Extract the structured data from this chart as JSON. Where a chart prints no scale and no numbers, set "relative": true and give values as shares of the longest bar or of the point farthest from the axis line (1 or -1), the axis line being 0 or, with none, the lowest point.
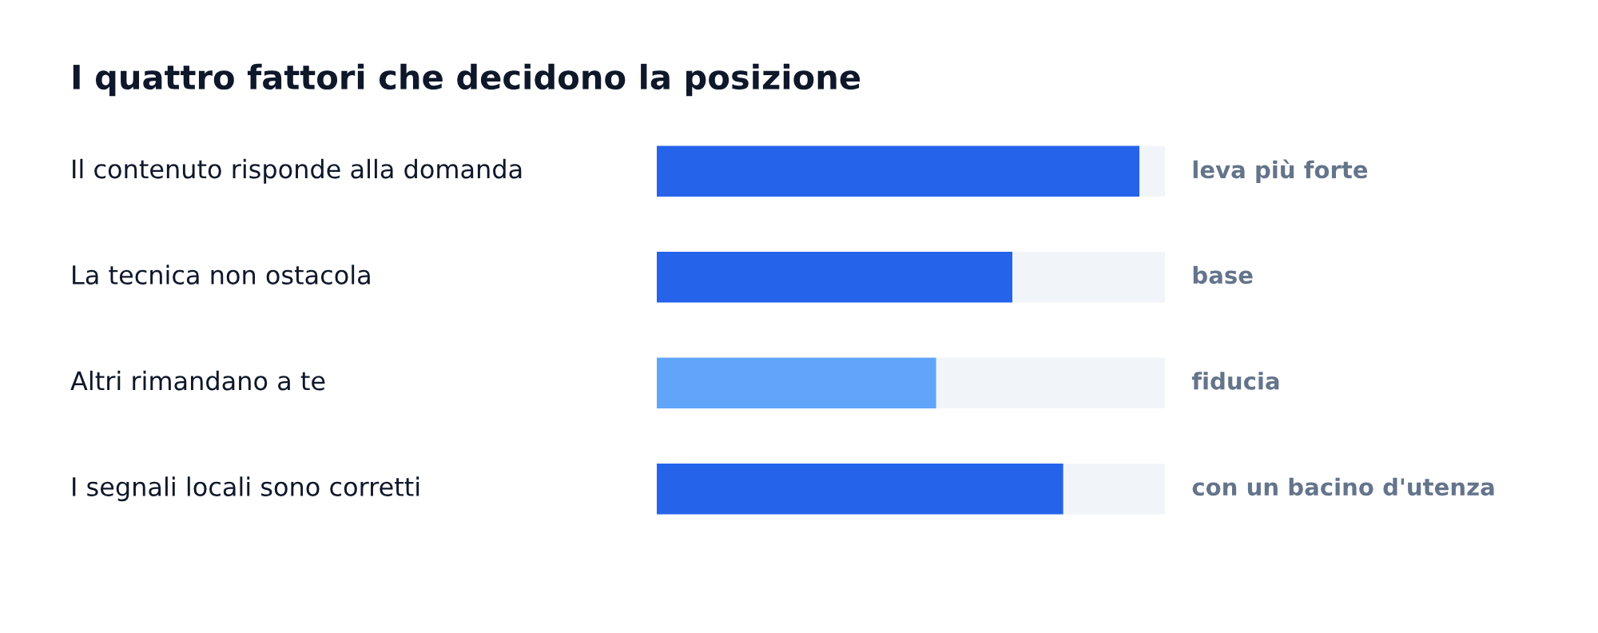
{
  "chart_data": {
    "type": "bar",
    "orientation": "horizontal",
    "stacked": true,
    "relative": true,
    "legend": false,
    "title": "I quattro fattori che decidono la posizione",
    "categories": [
      "Il contenuto risponde alla domanda",
      "La tecnica non ostacola",
      "Altri rimandano a te",
      "I segnali locali sono corretti"
    ],
    "series": [
      {
        "colors": [
          "#2563eb",
          "#2563eb",
          "#60a5fa",
          "#2563eb"
        ],
        "values": [
          0.95,
          0.7,
          0.55,
          0.8
        ]
      },
      {
        "color": "#f1f5f9",
        "values": [
          0.05,
          0.3,
          0.45,
          0.2
        ]
      }
    ],
    "annotations": [
      "leva più forte",
      "base",
      "fiducia",
      "con un bacino d'utenza"
    ]
  }
}
